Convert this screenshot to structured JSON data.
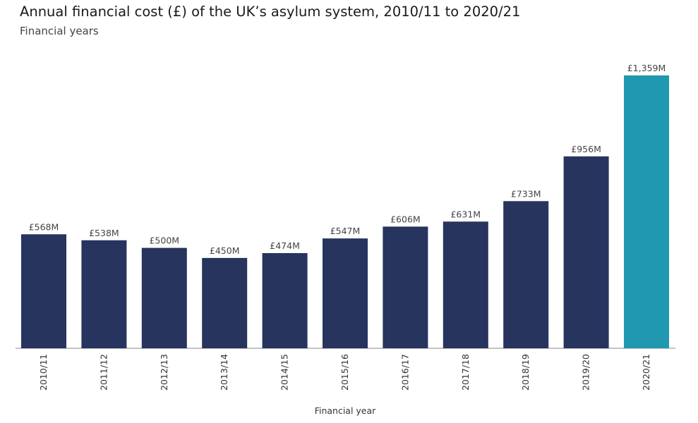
{
  "header": {
    "title": "Annual financial cost (£) of the UK’s asylum system, 2010/11 to 2020/21",
    "subtitle": "Financial years"
  },
  "chart_data": {
    "type": "bar",
    "title": "Annual financial cost (£) of the UK’s asylum system, 2010/11 to 2020/21",
    "subtitle": "Financial years",
    "xlabel": "Financial year",
    "ylabel": "",
    "categories": [
      "2010/11",
      "2011/12",
      "2012/13",
      "2013/14",
      "2014/15",
      "2015/16",
      "2016/17",
      "2017/18",
      "2018/19",
      "2019/20",
      "2020/21"
    ],
    "values": [
      568,
      538,
      500,
      450,
      474,
      547,
      606,
      631,
      733,
      956,
      1359
    ],
    "value_labels": [
      "£568M",
      "£538M",
      "£500M",
      "£450M",
      "£474M",
      "£547M",
      "£606M",
      "£631M",
      "£733M",
      "£956M",
      "£1,359M"
    ],
    "unit": "£M",
    "ylim": [
      0,
      1359
    ],
    "grid": false,
    "legend": "none",
    "colors": {
      "bar": "#26345e",
      "highlight": "#1f98b0",
      "axis": "#888888"
    },
    "highlight_index": 10
  }
}
